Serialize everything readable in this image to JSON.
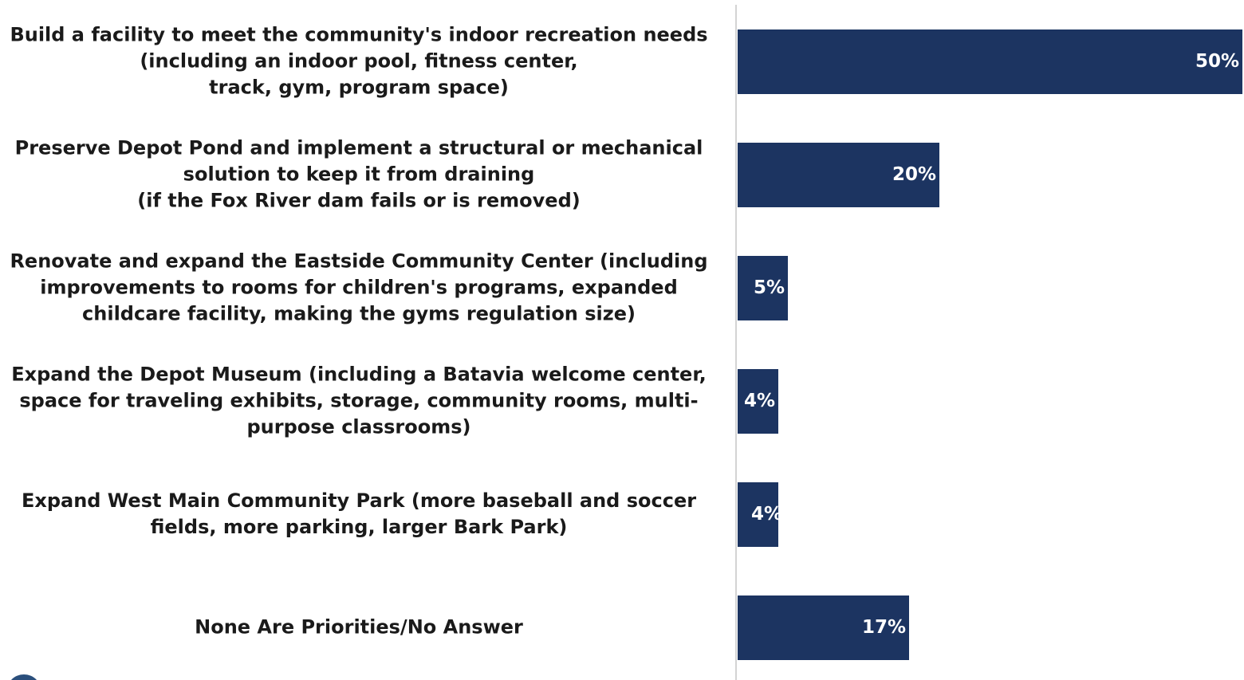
{
  "chart_data": {
    "type": "bar",
    "orientation": "horizontal",
    "categories": [
      "Build a facility to meet the community's indoor recreation needs\n(including an indoor pool, fitness center,\ntrack, gym, program space)",
      "Preserve Depot Pond and implement a structural or mechanical\nsolution to keep it from draining\n(if the Fox River dam fails or is removed)",
      "Renovate and expand the Eastside Community Center (including\nimprovements to rooms for children's programs, expanded\nchildcare facility, making the gyms regulation size)",
      "Expand the Depot Museum (including a Batavia welcome center,\nspace for traveling exhibits, storage, community rooms, multi-\npurpose classrooms)",
      "Expand West Main Community Park (more baseball and soccer\nfields, more parking, larger Bark Park)",
      "None Are Priorities/No Answer"
    ],
    "values": [
      50,
      20,
      5,
      4,
      4,
      17
    ],
    "value_labels": [
      "50%",
      "20%",
      "5%",
      "4%",
      "4%",
      "17%"
    ],
    "xlim": [
      0,
      50
    ],
    "bar_color": "#1c3461",
    "label_color": "#ffffff",
    "grid": false,
    "legend": "none",
    "title": "",
    "xlabel": "",
    "ylabel": ""
  }
}
